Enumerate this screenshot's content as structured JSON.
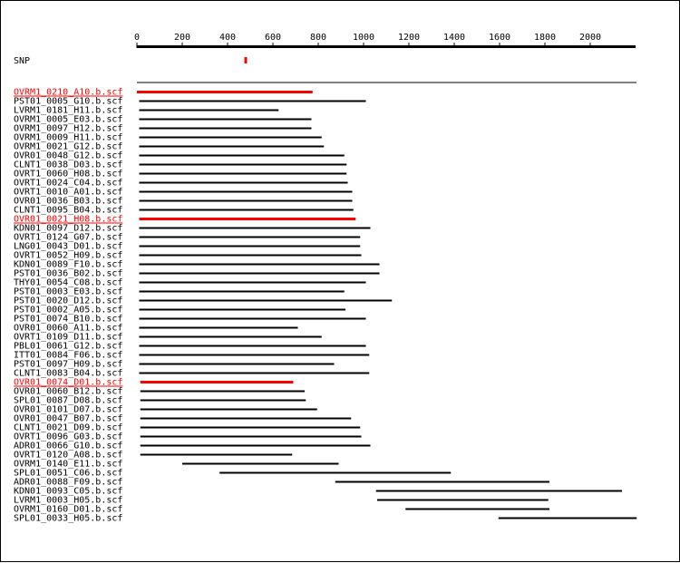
{
  "ruler": {
    "ticks": [
      0,
      200,
      400,
      600,
      800,
      1000,
      1200,
      1400,
      1600,
      1800,
      2000
    ],
    "max": 2200
  },
  "snp": {
    "label": "SNP",
    "position": 480,
    "color": "#ff0000"
  },
  "colors": {
    "line": "#000000",
    "highlight": "#ff0000"
  },
  "reads": [
    {
      "name": "OVRM1_0210_A10.b.scf",
      "start": 0,
      "end": 775,
      "highlight": true
    },
    {
      "name": "PST01_0005_G10.b.scf",
      "start": 10,
      "end": 1010
    },
    {
      "name": "LVRM1_0181_H11.b.scf",
      "start": 10,
      "end": 625
    },
    {
      "name": "OVRM1_0005_E03.b.scf",
      "start": 10,
      "end": 770
    },
    {
      "name": "OVRM1_0097_H12.b.scf",
      "start": 10,
      "end": 770
    },
    {
      "name": "OVRM1_0009_H11.b.scf",
      "start": 10,
      "end": 815
    },
    {
      "name": "OVRM1_0021_G12.b.scf",
      "start": 10,
      "end": 825
    },
    {
      "name": "OVR01_0048_G12.b.scf",
      "start": 10,
      "end": 915
    },
    {
      "name": "CLNT1_0038_D03.b.scf",
      "start": 10,
      "end": 925
    },
    {
      "name": "OVRT1_0060_H08.b.scf",
      "start": 10,
      "end": 925
    },
    {
      "name": "OVRT1_0024_C04.b.scf",
      "start": 10,
      "end": 930
    },
    {
      "name": "OVRT1_0010_A01.b.scf",
      "start": 10,
      "end": 950
    },
    {
      "name": "OVR01_0036_B03.b.scf",
      "start": 10,
      "end": 950
    },
    {
      "name": "CLNT1_0095_B04.b.scf",
      "start": 10,
      "end": 955
    },
    {
      "name": "OVR01_0021_H08.b.scf",
      "start": 10,
      "end": 965,
      "highlight": true
    },
    {
      "name": "KDN01_0097_D12.b.scf",
      "start": 10,
      "end": 1030
    },
    {
      "name": "OVRT1_0124_G07.b.scf",
      "start": 10,
      "end": 985
    },
    {
      "name": "LNG01_0043_D01.b.scf",
      "start": 10,
      "end": 985
    },
    {
      "name": "OVRT1_0052_H09.b.scf",
      "start": 10,
      "end": 990
    },
    {
      "name": "KDN01_0089_F10.b.scf",
      "start": 10,
      "end": 1070
    },
    {
      "name": "PST01_0036_B02.b.scf",
      "start": 10,
      "end": 1070
    },
    {
      "name": "THY01_0054_C08.b.scf",
      "start": 10,
      "end": 1010
    },
    {
      "name": "PST01_0003_E03.b.scf",
      "start": 10,
      "end": 915
    },
    {
      "name": "PST01_0020_D12.b.scf",
      "start": 10,
      "end": 1125
    },
    {
      "name": "PST01_0002_A05.b.scf",
      "start": 10,
      "end": 920
    },
    {
      "name": "PST01_0074_B10.b.scf",
      "start": 10,
      "end": 1010
    },
    {
      "name": "OVR01_0060_A11.b.scf",
      "start": 10,
      "end": 710
    },
    {
      "name": "OVRT1_0109_D11.b.scf",
      "start": 10,
      "end": 815
    },
    {
      "name": "PBL01_0061_G12.b.scf",
      "start": 10,
      "end": 1010
    },
    {
      "name": "ITT01_0084_F06.b.scf",
      "start": 10,
      "end": 1025
    },
    {
      "name": "PST01_0097_H09.b.scf",
      "start": 10,
      "end": 870
    },
    {
      "name": "CLNT1_0083_B04.b.scf",
      "start": 10,
      "end": 1025
    },
    {
      "name": "OVR01_0074_D01.b.scf",
      "start": 15,
      "end": 690,
      "highlight": true
    },
    {
      "name": "OVR01_0060_B12.b.scf",
      "start": 15,
      "end": 740
    },
    {
      "name": "SPL01_0087_D08.b.scf",
      "start": 15,
      "end": 745
    },
    {
      "name": "OVR01_0101_D07.b.scf",
      "start": 15,
      "end": 795
    },
    {
      "name": "OVR01_0047_B07.b.scf",
      "start": 15,
      "end": 945
    },
    {
      "name": "CLNT1_0021_D09.b.scf",
      "start": 15,
      "end": 985
    },
    {
      "name": "OVRT1_0096_G03.b.scf",
      "start": 15,
      "end": 990
    },
    {
      "name": "ADR01_0066_G10.b.scf",
      "start": 15,
      "end": 1030
    },
    {
      "name": "OVRT1_0120_A08.b.scf",
      "start": 15,
      "end": 685
    },
    {
      "name": "OVRM1_0140_E11.b.scf",
      "start": 200,
      "end": 890
    },
    {
      "name": "SPL01_0051_C06.b.scf",
      "start": 365,
      "end": 1385
    },
    {
      "name": "ADR01_0088_F09.b.scf",
      "start": 875,
      "end": 1820
    },
    {
      "name": "KDN01_0093_C05.b.scf",
      "start": 1055,
      "end": 2140
    },
    {
      "name": "LVRM1_0003_H05.b.scf",
      "start": 1060,
      "end": 1815
    },
    {
      "name": "OVRM1_0160_D01.b.scf",
      "start": 1185,
      "end": 1820
    },
    {
      "name": "SPL01_0033_H05.b.scf",
      "start": 1595,
      "end": 2205
    }
  ]
}
